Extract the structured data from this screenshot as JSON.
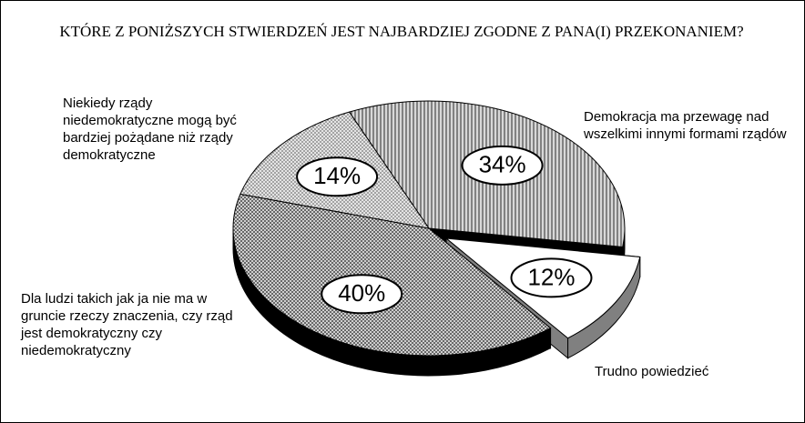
{
  "chart_data": {
    "type": "pie",
    "title": "KTÓRE Z PONIŻSZYCH STWIERDZEŃ JEST NAJBARDZIEJ ZGODNE Z PANA(I) PRZEKONANIEM?",
    "categories": [
      "Demokracja ma przewagę nad wszelkimi innymi formami rządów",
      "Trudno powiedzieć",
      "Dla ludzi takich jak ja nie ma w gruncie rzeczy znaczenia, czy rząd jest demokratyczny czy niedemokratyczny",
      "Niekiedy rządy niedemokratyczne mogą być bardziej pożądane niż rządy demokratyczne"
    ],
    "values": [
      34,
      12,
      40,
      14
    ],
    "value_labels": [
      "34%",
      "12%",
      "40%",
      "14%"
    ],
    "colors": [
      "#d8d8d8",
      "#ffffff",
      "#cfcfcf",
      "#e4e4e4"
    ],
    "side_colors": [
      "#000000",
      "#808080",
      "#000000",
      "#000000"
    ],
    "exploded": [
      false,
      true,
      false,
      false
    ]
  }
}
